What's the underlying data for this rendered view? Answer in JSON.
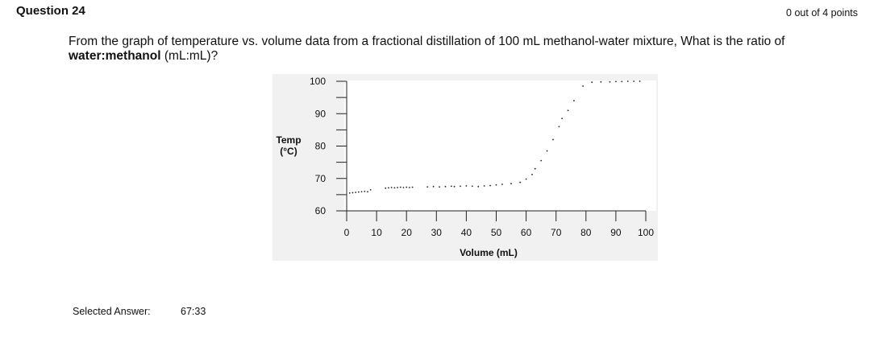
{
  "question": {
    "title": "Question 24",
    "score": "0 out of 4 points",
    "text_before": "From the graph of temperature vs. volume data from a fractional distillation of 100 mL methanol-water mixture, What is the ratio of ",
    "text_bold": "water:methanol",
    "text_after": " (mL:mL)?"
  },
  "answer": {
    "label": "Selected Answer:",
    "value": "67:33"
  },
  "chart_data": {
    "type": "scatter",
    "title": "",
    "xlabel": "Volume (mL)",
    "ylabel_lines": [
      "Temp",
      "(°C)"
    ],
    "xlim": [
      0,
      100
    ],
    "ylim": [
      60,
      100
    ],
    "x_ticks": [
      0,
      10,
      20,
      30,
      40,
      50,
      60,
      70,
      80,
      90,
      100
    ],
    "y_ticks": [
      60,
      70,
      80,
      90,
      100
    ],
    "grid": false,
    "colors": {
      "plot_bg": "#ffffff",
      "frame_bg": "#f1f1f1",
      "points": "#222222"
    },
    "series": [
      {
        "x": [
          1,
          2,
          3,
          4,
          5,
          6,
          7,
          8,
          13,
          14,
          15,
          16,
          17,
          18,
          19,
          20,
          21,
          22,
          27,
          29,
          31,
          33,
          35,
          36,
          38,
          40,
          42,
          44,
          46,
          48,
          50,
          52,
          55,
          58,
          60,
          62,
          63,
          65,
          67,
          69,
          71,
          72,
          74,
          76,
          79,
          82,
          85,
          88,
          90,
          92,
          94,
          96,
          98
        ],
        "y": [
          65.5,
          65.6,
          65.7,
          65.8,
          65.9,
          66.0,
          65.9,
          66.5,
          67.0,
          67.1,
          67.2,
          67.1,
          67.2,
          67.3,
          67.2,
          67.3,
          67.2,
          67.3,
          67.4,
          67.5,
          67.4,
          67.5,
          67.6,
          67.5,
          67.6,
          67.7,
          67.6,
          67.5,
          67.7,
          67.8,
          68.0,
          68.2,
          68.4,
          68.8,
          69.8,
          71.2,
          73.0,
          75.5,
          78.5,
          82.0,
          86.0,
          88.5,
          91.0,
          94.0,
          98.5,
          99.7,
          99.8,
          99.8,
          99.9,
          99.9,
          100.0,
          100.0,
          100.0
        ]
      }
    ]
  }
}
